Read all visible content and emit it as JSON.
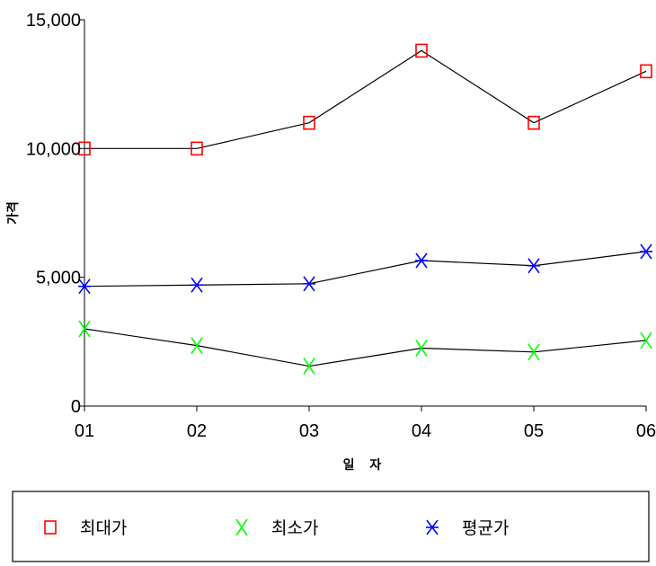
{
  "chart_data": {
    "type": "line",
    "title": "",
    "xlabel": "일 자",
    "ylabel": "가격",
    "categories": [
      "01",
      "02",
      "03",
      "04",
      "05",
      "06"
    ],
    "y_ticks": [
      "0",
      "5,000",
      "10,000",
      "15,000"
    ],
    "ylim": [
      0,
      15000
    ],
    "grid": false,
    "legend_position": "bottom",
    "series": [
      {
        "name": "최대가",
        "marker": "square",
        "color": "#ff0000",
        "values": [
          10000,
          10000,
          11000,
          13800,
          11000,
          13000
        ]
      },
      {
        "name": "최소가",
        "marker": "x",
        "color": "#00ff00",
        "values": [
          3000,
          2350,
          1550,
          2250,
          2100,
          2550
        ]
      },
      {
        "name": "평균가",
        "marker": "asterisk",
        "color": "#0000ff",
        "values": [
          4650,
          4700,
          4750,
          5650,
          5450,
          6000
        ]
      }
    ],
    "line_color": "#000000"
  }
}
